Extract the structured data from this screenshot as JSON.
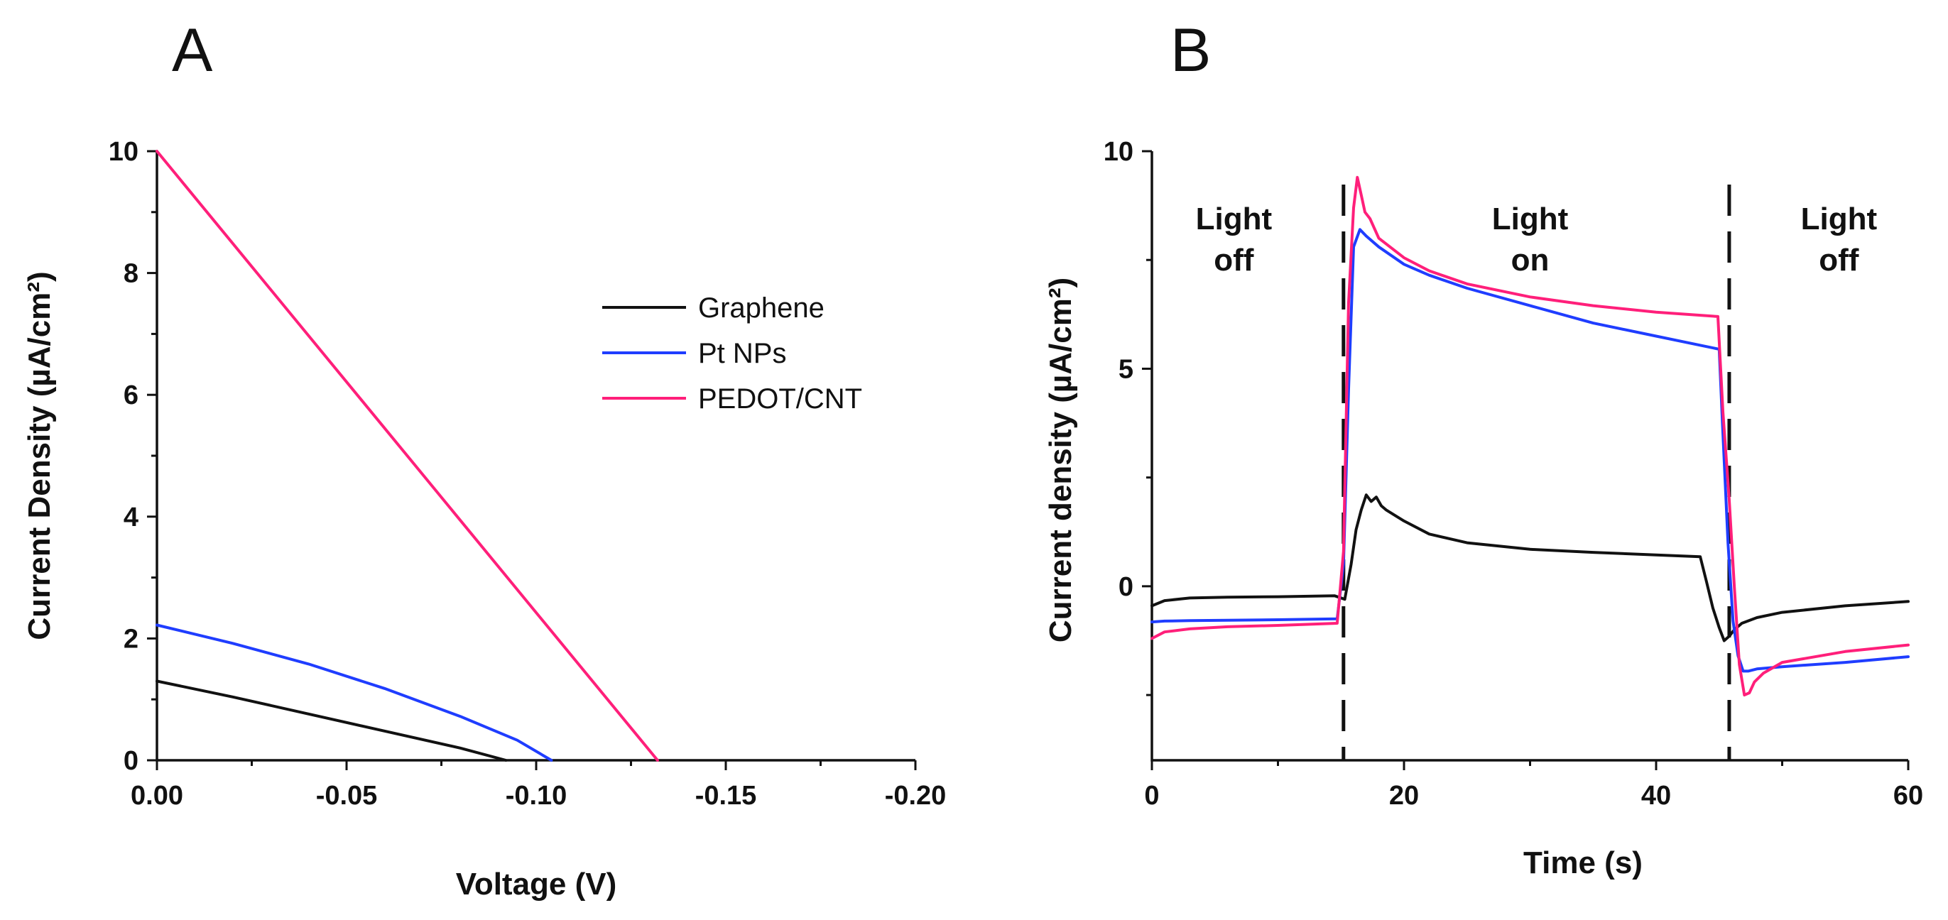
{
  "chart_data": [
    {
      "panel": "A",
      "type": "line",
      "xlabel": "Voltage (V)",
      "ylabel": "Current Density (µA/cm²)",
      "xlim": [
        0,
        -0.2
      ],
      "ylim": [
        0,
        10
      ],
      "xticks": [
        "0.00",
        "-0.05",
        "-0.10",
        "-0.15",
        "-0.20"
      ],
      "yticks": [
        "0",
        "2",
        "4",
        "6",
        "8",
        "10"
      ],
      "legend_position": "upper-right",
      "series": [
        {
          "name": "Graphene",
          "color": "#111111",
          "x": [
            0,
            -0.02,
            -0.04,
            -0.06,
            -0.08,
            -0.092
          ],
          "y": [
            1.3,
            1.04,
            0.76,
            0.48,
            0.2,
            0.0
          ]
        },
        {
          "name": "Pt NPs",
          "color": "#1f3dff",
          "x": [
            0,
            -0.02,
            -0.04,
            -0.06,
            -0.08,
            -0.095,
            -0.104
          ],
          "y": [
            2.22,
            1.92,
            1.58,
            1.18,
            0.72,
            0.33,
            0.0
          ]
        },
        {
          "name": "PEDOT/CNT",
          "color": "#ff1f7a",
          "x": [
            0,
            -0.132
          ],
          "y": [
            10.0,
            0.0
          ]
        }
      ]
    },
    {
      "panel": "B",
      "type": "line",
      "xlabel": "Time (s)",
      "ylabel": "Current density (µA/cm²)",
      "xlim": [
        0,
        60
      ],
      "ylim": [
        -4,
        10
      ],
      "xticks": [
        "0",
        "20",
        "40",
        "60"
      ],
      "yticks": [
        "0",
        "5",
        "10"
      ],
      "dividers_x": [
        15.2,
        45.8
      ],
      "annotations": [
        {
          "x": 6.5,
          "lines": [
            "Light",
            "off"
          ]
        },
        {
          "x": 30,
          "lines": [
            "Light",
            "on"
          ]
        },
        {
          "x": 54.5,
          "lines": [
            "Light",
            "off"
          ]
        }
      ],
      "series": [
        {
          "name": "Graphene",
          "color": "#111111",
          "x": [
            0,
            1,
            3,
            6,
            10,
            14.5,
            15.3,
            15.8,
            16.2,
            16.6,
            17.0,
            17.4,
            17.8,
            18.2,
            18.6,
            20,
            22,
            25,
            30,
            35,
            40,
            43.5,
            44.0,
            44.5,
            45.0,
            45.4,
            45.8,
            46.2,
            46.8,
            48,
            50,
            55,
            60
          ],
          "y": [
            -0.45,
            -0.33,
            -0.27,
            -0.25,
            -0.24,
            -0.22,
            -0.3,
            0.5,
            1.3,
            1.75,
            2.1,
            1.95,
            2.05,
            1.85,
            1.75,
            1.5,
            1.2,
            1.0,
            0.85,
            0.78,
            0.72,
            0.68,
            0.1,
            -0.5,
            -0.95,
            -1.25,
            -1.15,
            -1.0,
            -0.85,
            -0.72,
            -0.6,
            -0.45,
            -0.35
          ]
        },
        {
          "name": "Pt NPs",
          "color": "#1f3dff",
          "x": [
            0,
            1,
            3,
            6,
            10,
            14.7,
            15.2,
            15.6,
            16.0,
            16.5,
            17,
            18,
            20,
            22,
            25,
            30,
            35,
            40,
            45.0,
            45.3,
            45.7,
            46.1,
            46.5,
            46.9,
            47.3,
            48,
            50,
            55,
            60
          ],
          "y": [
            -0.82,
            -0.8,
            -0.79,
            -0.78,
            -0.77,
            -0.75,
            0.5,
            4.5,
            7.8,
            8.2,
            8.05,
            7.8,
            7.4,
            7.15,
            6.85,
            6.45,
            6.05,
            5.75,
            5.45,
            3.5,
            1.0,
            -0.8,
            -1.6,
            -1.95,
            -1.95,
            -1.9,
            -1.85,
            -1.75,
            -1.62
          ]
        },
        {
          "name": "PEDOT/CNT",
          "color": "#ff1f7a",
          "x": [
            0,
            1,
            3,
            6,
            10,
            14.7,
            15.2,
            15.6,
            16.0,
            16.3,
            16.6,
            16.9,
            17.3,
            18,
            20,
            22,
            25,
            30,
            35,
            40,
            44.9,
            45.3,
            45.8,
            46.2,
            46.6,
            47.0,
            47.4,
            47.8,
            48.5,
            50,
            55,
            60
          ],
          "y": [
            -1.2,
            -1.05,
            -0.98,
            -0.93,
            -0.9,
            -0.85,
            0.8,
            6.5,
            8.7,
            9.4,
            9.0,
            8.6,
            8.45,
            8.0,
            7.55,
            7.25,
            6.95,
            6.65,
            6.45,
            6.3,
            6.2,
            4.0,
            2.0,
            0.0,
            -1.8,
            -2.5,
            -2.45,
            -2.2,
            -2.0,
            -1.75,
            -1.5,
            -1.35
          ]
        }
      ]
    }
  ]
}
